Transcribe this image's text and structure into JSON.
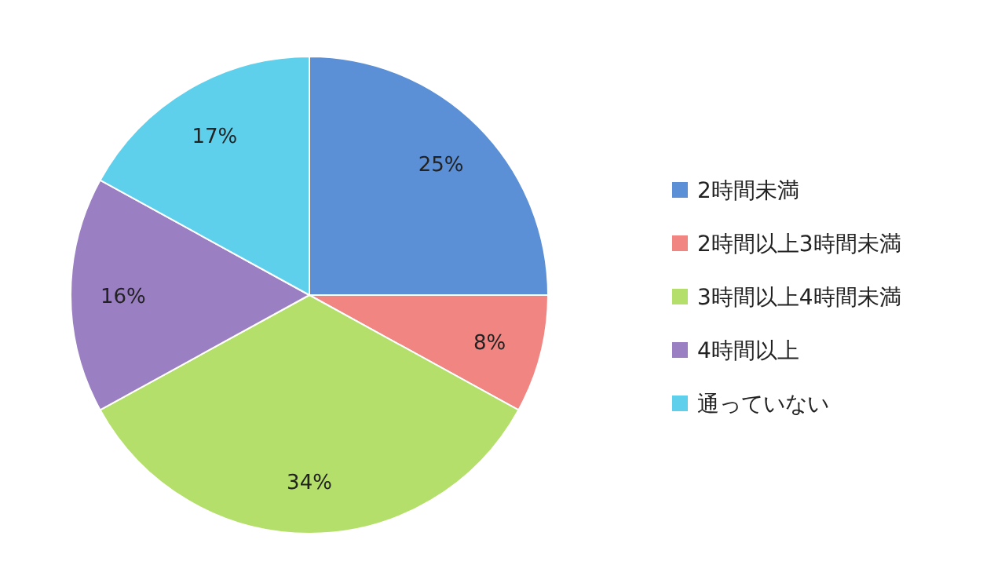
{
  "chart_data": {
    "type": "pie",
    "categories": [
      "2時間未満",
      "2時間以上3時間未満",
      "3時間以上4時間未満",
      "4時間以上",
      "通っていない"
    ],
    "values": [
      25,
      8,
      34,
      16,
      17
    ],
    "colors": [
      "#5b8fd6",
      "#f08582",
      "#b3df6a",
      "#9a7fc2",
      "#5fd0ec"
    ],
    "value_labels": [
      "25%",
      "8%",
      "34%",
      "16%",
      "17%"
    ],
    "legend": "right"
  }
}
